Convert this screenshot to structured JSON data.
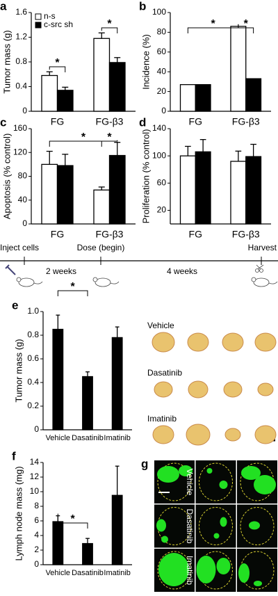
{
  "chart_data": [
    {
      "type": "bar",
      "panel": "a",
      "ylabel": "Tumor mass (g)",
      "categories": [
        "FG",
        "FG-β3"
      ],
      "series": [
        {
          "name": "n-s",
          "color": "#ffffff",
          "values": [
            0.58,
            1.18
          ],
          "errors": [
            0.06,
            0.09
          ]
        },
        {
          "name": "c-src sh",
          "color": "#000000",
          "values": [
            0.34,
            0.79
          ],
          "errors": [
            0.05,
            0.08
          ]
        }
      ],
      "ylim": [
        0,
        1.6
      ],
      "yticks": [
        0,
        0.4,
        0.8,
        1.2,
        1.6
      ],
      "legend": "top-left",
      "annotations": [
        "*",
        "*"
      ]
    },
    {
      "type": "bar",
      "panel": "b",
      "ylabel": "Incidence (%)",
      "categories": [
        "FG",
        "FG-β3"
      ],
      "series": [
        {
          "color": "#ffffff",
          "values": [
            27,
            86
          ]
        },
        {
          "color": "#000000",
          "values": [
            27,
            33
          ]
        }
      ],
      "ylim": [
        0,
        100
      ],
      "yticks": [
        0,
        20,
        40,
        60,
        80,
        100
      ],
      "annotations": [
        "*",
        "*"
      ]
    },
    {
      "type": "bar",
      "panel": "c",
      "ylabel": "Apoptosis (% control)",
      "categories": [
        "FG",
        "FG-β3"
      ],
      "series": [
        {
          "color": "#ffffff",
          "values": [
            100,
            57
          ],
          "errors": [
            22,
            5
          ]
        },
        {
          "color": "#000000",
          "values": [
            98,
            115
          ],
          "errors": [
            19,
            22
          ]
        }
      ],
      "ylim": [
        0,
        160
      ],
      "yticks": [
        0,
        40,
        80,
        120,
        160
      ],
      "annotations": [
        "*",
        "*"
      ]
    },
    {
      "type": "bar",
      "panel": "d",
      "ylabel": "Proliferation (% control)",
      "categories": [
        "FG",
        "FG-β3"
      ],
      "series": [
        {
          "color": "#ffffff",
          "values": [
            100,
            92
          ],
          "errors": [
            14,
            15
          ]
        },
        {
          "color": "#000000",
          "values": [
            106,
            99
          ],
          "errors": [
            18,
            18
          ]
        }
      ],
      "ylim": [
        0,
        140
      ],
      "yticks": [
        20,
        60,
        100,
        140
      ]
    },
    {
      "type": "bar",
      "panel": "e",
      "ylabel": "Tumor mass (g)",
      "categories": [
        "Vehicle",
        "Dasatinib",
        "Imatinib"
      ],
      "values": [
        0.85,
        0.45,
        0.78
      ],
      "errors": [
        0.12,
        0.04,
        0.09
      ],
      "color": "#000000",
      "ylim": [
        0,
        1
      ],
      "yticks": [
        0,
        0.2,
        0.4,
        0.6,
        0.8,
        {
          "value": 1,
          "label": "1.0"
        }
      ],
      "annotations": [
        "*"
      ]
    },
    {
      "type": "bar",
      "panel": "f",
      "ylabel": "Lymph node mass (mg)",
      "categories": [
        "Vehicle",
        "Dasatinib",
        "Imatinib"
      ],
      "values": [
        5.9,
        2.9,
        9.5
      ],
      "errors": [
        0.8,
        0.7,
        4.0
      ],
      "color": "#000000",
      "ylim": [
        0,
        14
      ],
      "yticks": [
        0,
        2,
        4,
        6,
        8,
        10,
        12,
        14
      ],
      "annotations": [
        "*"
      ]
    }
  ],
  "timeline": {
    "events": [
      "Inject cells",
      "Dose (begin)",
      "Harvest"
    ],
    "intervals": [
      "2 weeks",
      "4 weeks"
    ]
  },
  "photos": {
    "labels": [
      "Vehicle",
      "Dasatinib",
      "Imatinib"
    ]
  },
  "fluorescence": {
    "panel": "g",
    "labels": [
      "Vehicle",
      "Dasatinib",
      "Imatinib"
    ]
  }
}
